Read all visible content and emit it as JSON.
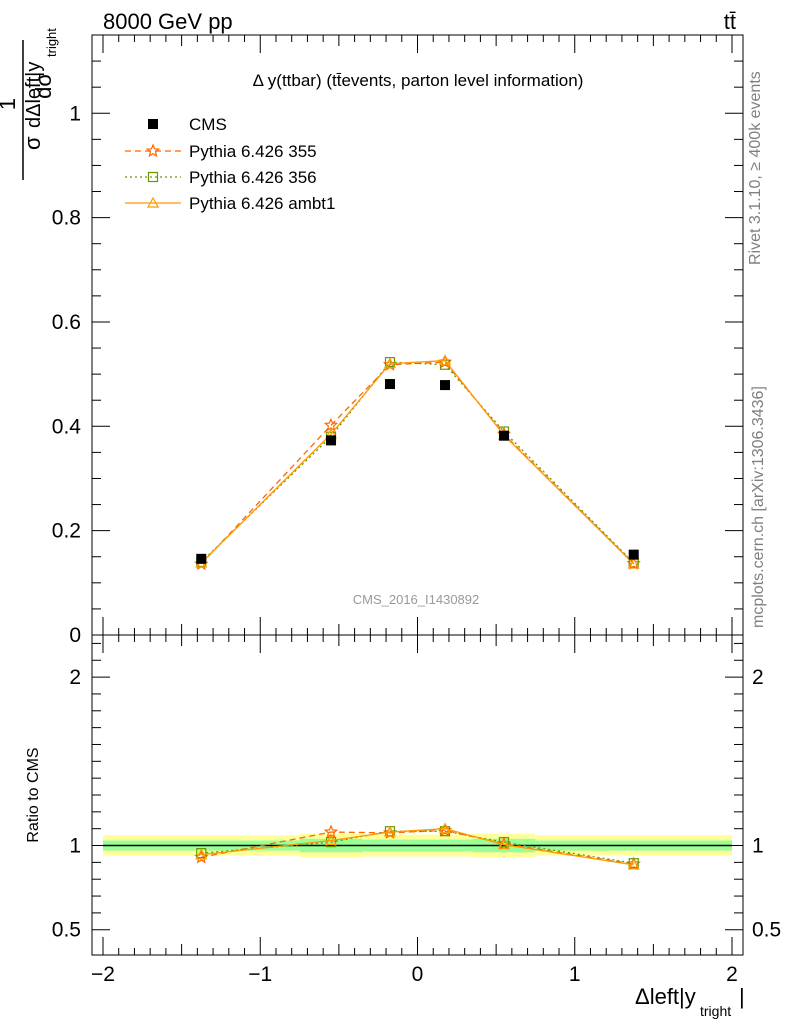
{
  "header": {
    "energy_label": "8000 GeV pp",
    "process_label": "tt̄",
    "plot_title": "Δ y(ttbar) (tt̄events, parton level information)",
    "analysis_id": "CMS_2016_I1430892",
    "rivet_label": "Rivet 3.1.10, ≥ 400k events",
    "source_label": "mcplots.cern.ch [arXiv:1306.3436]"
  },
  "axes": {
    "main_ylabel": "1/σ dσ/dΔleft|y_tright|",
    "main_ylabel_num": "1",
    "main_ylabel_den": "σ",
    "main_ylabel_dnum": "dσ",
    "main_ylabel_dden": "dΔleft|y",
    "main_ylabel_sub": "tright",
    "ratio_ylabel": "Ratio to CMS",
    "xlabel": "Δleft|y",
    "xlabel_sub": "tright",
    "xlabel_end": "|"
  },
  "colors": {
    "cms": "#000000",
    "p355": "#ff6600",
    "p356": "#669900",
    "ambt1": "#ff9900",
    "band_inner": "#99ff99",
    "band_outer": "#ffff99"
  },
  "chart_data": [
    {
      "type": "scatter",
      "panel": "main",
      "title": "Δ y(ttbar) (tt̄events, parton level information)",
      "xlabel": "Δleft|y_tright|",
      "ylabel": "1/σ dσ/dΔleft|y_tright|",
      "xlim": [
        -2,
        2
      ],
      "ylim": [
        0,
        1.15
      ],
      "x_ticks": [
        -2,
        -1,
        0,
        1,
        2
      ],
      "x_tick_labels": [
        "−2",
        "−1",
        "0",
        "1",
        "2"
      ],
      "y_ticks": [
        0,
        0.2,
        0.4,
        0.6,
        0.8,
        1
      ],
      "y_tick_labels": [
        "0",
        "0.2",
        "0.4",
        "0.6",
        "0.8",
        "1"
      ],
      "x": [
        -1.375,
        -0.55,
        -0.175,
        0.175,
        0.55,
        1.375
      ],
      "series": [
        {
          "name": "CMS",
          "marker": "square",
          "values": [
            0.146,
            0.373,
            0.481,
            0.479,
            0.382,
            0.154
          ]
        },
        {
          "name": "Pythia 6.426 355",
          "marker": "star",
          "line": "dashed",
          "values": [
            0.136,
            0.402,
            0.518,
            0.523,
            0.385,
            0.137
          ]
        },
        {
          "name": "Pythia 6.426 356",
          "marker": "open-square",
          "line": "dotted",
          "values": [
            0.14,
            0.38,
            0.523,
            0.518,
            0.39,
            0.138
          ]
        },
        {
          "name": "Pythia 6.426 ambt1",
          "marker": "open-triangle",
          "line": "solid",
          "values": [
            0.138,
            0.385,
            0.52,
            0.526,
            0.383,
            0.136
          ]
        }
      ]
    },
    {
      "type": "line",
      "panel": "ratio",
      "ylabel": "Ratio to CMS",
      "xlim": [
        -2,
        2
      ],
      "ylim": [
        0.35,
        2.25
      ],
      "y_ticks": [
        0.5,
        1,
        2
      ],
      "y_tick_labels": [
        "0.5",
        "1",
        "2"
      ],
      "x": [
        -1.375,
        -0.55,
        -0.175,
        0.175,
        0.55,
        1.375
      ],
      "bin_edges": [
        -2,
        -0.75,
        -0.35,
        0,
        0.35,
        0.75,
        2
      ],
      "band_inner": [
        0.03,
        0.04,
        0.035,
        0.035,
        0.04,
        0.03
      ],
      "band_outer": [
        0.06,
        0.07,
        0.065,
        0.065,
        0.07,
        0.06
      ],
      "series": [
        {
          "name": "Pythia 6.426 355",
          "values": [
            0.93,
            1.08,
            1.075,
            1.09,
            1.01,
            0.89
          ]
        },
        {
          "name": "Pythia 6.426 356",
          "values": [
            0.955,
            1.02,
            1.085,
            1.085,
            1.02,
            0.895
          ]
        },
        {
          "name": "Pythia 6.426 ambt1",
          "values": [
            0.945,
            1.03,
            1.08,
            1.1,
            1.005,
            0.885
          ]
        }
      ]
    }
  ]
}
